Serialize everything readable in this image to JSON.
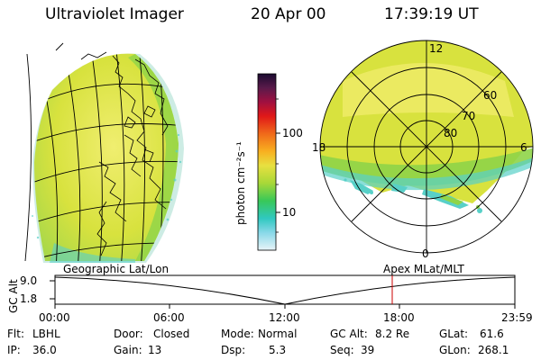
{
  "header": {
    "title": "Ultraviolet Imager",
    "date": "20 Apr 00",
    "time": "17:39:19 UT"
  },
  "colorbar": {
    "unit_label": "photon cm⁻²s⁻¹",
    "ticks": [
      "100",
      "10"
    ]
  },
  "polar_plot": {
    "mlt_labels": {
      "top": "12",
      "left": "18",
      "right": "6",
      "bottom": "0"
    },
    "lat_labels": [
      "60",
      "70",
      "80"
    ]
  },
  "timeline": {
    "left_label": "Geographic Lat/Lon",
    "right_label": "Apex MLat/MLT",
    "y_axis_label": "GC Alt",
    "y_ticks": [
      "9.0",
      "1.8"
    ],
    "x_ticks": [
      "00:00",
      "06:00",
      "12:00",
      "18:00",
      "23:59"
    ]
  },
  "info": {
    "filter": {
      "label": "Flt:",
      "value": "LBHL"
    },
    "ip": {
      "label": "IP:",
      "value": "36.0"
    },
    "door": {
      "label": "Door:",
      "value": "Closed"
    },
    "gain": {
      "label": "Gain:",
      "value": "13"
    },
    "mode": {
      "label": "Mode:",
      "value": "Normal"
    },
    "dsp": {
      "label": "Dsp:",
      "value": "5.3"
    },
    "gc_alt": {
      "label": "GC Alt:",
      "value": "8.2 Re"
    },
    "seq": {
      "label": "Seq:",
      "value": "39"
    },
    "glat": {
      "label": "GLat:",
      "value": "61.6"
    },
    "glon": {
      "label": "GLon:",
      "value": "268.1"
    }
  },
  "colors": {
    "emission_main": "#d4e23a",
    "emission_light": "#f0ec6a",
    "emission_green": "#8fd448",
    "emission_cyan": "#58d0c8",
    "marker_red": "#cc0000"
  }
}
